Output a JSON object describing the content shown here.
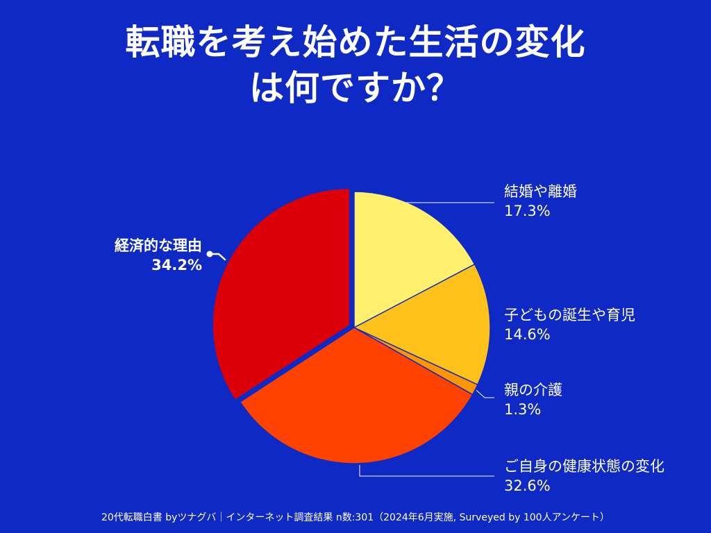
{
  "chart_data": {
    "type": "pie",
    "title_lines": [
      "転職を考え始めた生活の変化",
      "は何ですか？"
    ],
    "slices": [
      {
        "label": "結婚や離婚",
        "value": 17.3,
        "value_label": "17.3%",
        "color": "#fff06e"
      },
      {
        "label": "子どもの誕生や育児",
        "value": 14.6,
        "value_label": "14.6%",
        "color": "#ffc21a"
      },
      {
        "label": "親の介護",
        "value": 1.3,
        "value_label": "1.3%",
        "color": "#ff9600"
      },
      {
        "label": "ご自身の健康状態の変化",
        "value": 32.6,
        "value_label": "32.6%",
        "color": "#ff4200"
      },
      {
        "label": "経済的な理由",
        "value": 34.2,
        "value_label": "34.2%",
        "color": "#dc0008",
        "highlight": true
      }
    ]
  },
  "footer": "20代転職白書 byツナグバ｜インターネット調査結果 n数:301（2024年6月実施, Surveyed by 100人アンケート）"
}
